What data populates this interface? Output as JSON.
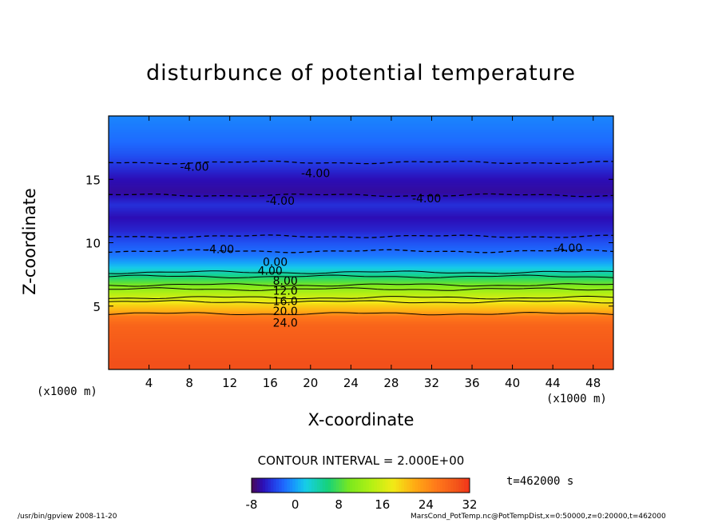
{
  "chart_data": {
    "type": "heatmap",
    "subtype": "filled-contour",
    "title": "disturbunce of potential temperature",
    "xlabel": "X-coordinate",
    "ylabel": "Z-coordinate",
    "x_unit": "(x1000 m)",
    "xlim": [
      0,
      50
    ],
    "ylim": [
      0,
      20
    ],
    "x_ticks": [
      4,
      8,
      12,
      16,
      20,
      24,
      28,
      32,
      36,
      40,
      44,
      48
    ],
    "y_ticks": [
      5,
      10,
      15
    ],
    "contour_interval_text": "CONTOUR INTERVAL = 2.000E+00",
    "contour_interval": 2,
    "colorbar": {
      "range": [
        -8,
        32
      ],
      "tick_labels": [
        "-8",
        "0",
        "8",
        "16",
        "24",
        "32"
      ]
    },
    "time_label": "t=462000 s",
    "vertical_profile": [
      {
        "z": 0.5,
        "value": 30
      },
      {
        "z": 2.0,
        "value": 29
      },
      {
        "z": 3.5,
        "value": 28
      },
      {
        "z": 4.2,
        "value": 26
      },
      {
        "z": 4.6,
        "value": 22
      },
      {
        "z": 5.0,
        "value": 20
      },
      {
        "z": 5.5,
        "value": 17
      },
      {
        "z": 6.0,
        "value": 14
      },
      {
        "z": 6.5,
        "value": 11
      },
      {
        "z": 7.0,
        "value": 8
      },
      {
        "z": 7.5,
        "value": 5
      },
      {
        "z": 8.0,
        "value": 2
      },
      {
        "z": 8.5,
        "value": 0
      },
      {
        "z": 9.0,
        "value": -1.5
      },
      {
        "z": 10.0,
        "value": -3
      },
      {
        "z": 11.0,
        "value": -5
      },
      {
        "z": 12.0,
        "value": -6
      },
      {
        "z": 13.0,
        "value": -4.5
      },
      {
        "z": 14.0,
        "value": -6.5
      },
      {
        "z": 15.0,
        "value": -6
      },
      {
        "z": 16.0,
        "value": -4.5
      },
      {
        "z": 17.0,
        "value": -3
      },
      {
        "z": 18.0,
        "value": -2
      },
      {
        "z": 19.0,
        "value": -1.5
      },
      {
        "z": 20.0,
        "value": -1
      }
    ],
    "contour_labels": [
      {
        "text": "-4.00",
        "x": 8.5,
        "z": 16.0
      },
      {
        "text": "-4.00",
        "x": 20.5,
        "z": 15.5
      },
      {
        "text": "-4.00",
        "x": 17.0,
        "z": 13.3
      },
      {
        "text": "-4.00",
        "x": 31.5,
        "z": 13.5
      },
      {
        "text": "-4.00",
        "x": 11.0,
        "z": 9.5
      },
      {
        "text": "-4.00",
        "x": 45.5,
        "z": 9.6
      },
      {
        "text": "0.00",
        "x": 16.5,
        "z": 8.5
      },
      {
        "text": "4.00",
        "x": 16.0,
        "z": 7.8
      },
      {
        "text": "8.00",
        "x": 17.5,
        "z": 7.0
      },
      {
        "text": "12.0",
        "x": 17.5,
        "z": 6.2
      },
      {
        "text": "16.0",
        "x": 17.5,
        "z": 5.4
      },
      {
        "text": "20.0",
        "x": 17.5,
        "z": 4.6
      },
      {
        "text": "24.0",
        "x": 17.5,
        "z": 3.7
      }
    ]
  },
  "footer": {
    "left": "/usr/bin/gpview   2008-11-20",
    "right": "MarsCond_PotTemp.nc@PotTempDist,x=0:50000,z=0:20000,t=462000"
  }
}
